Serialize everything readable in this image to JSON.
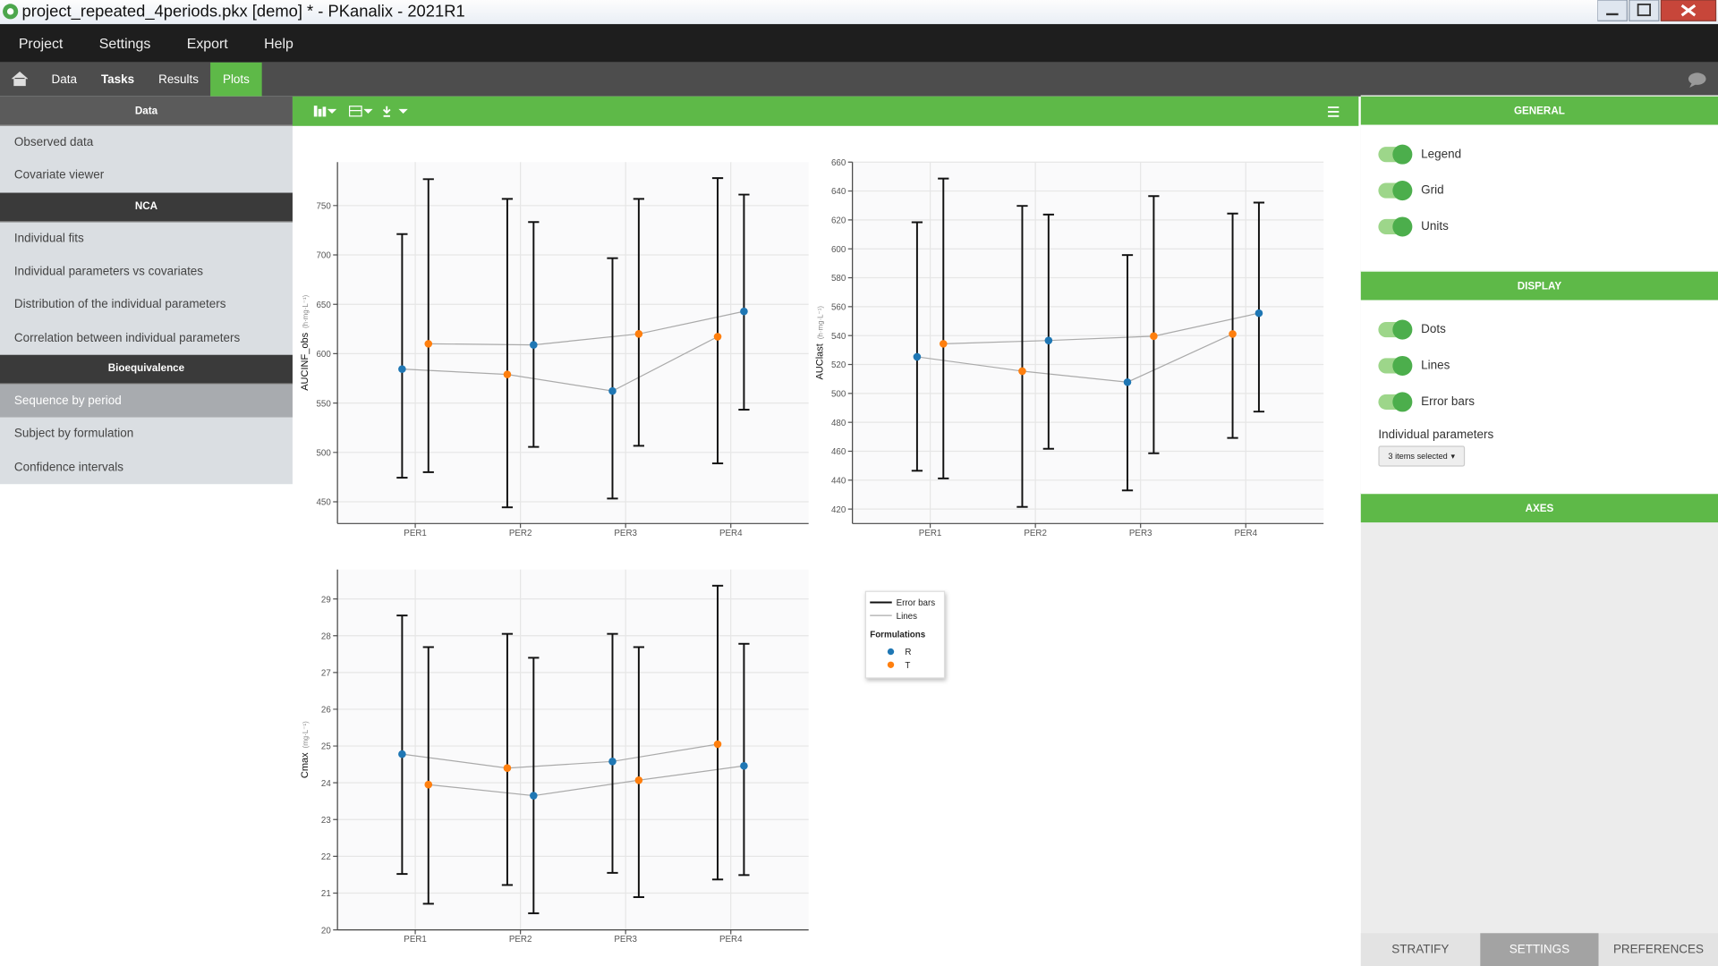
{
  "window": {
    "title": "project_repeated_4periods.pkx [demo] * - PKanalix - 2021R1"
  },
  "menu": [
    "Project",
    "Settings",
    "Export",
    "Help"
  ],
  "tabs": [
    "Data",
    "Tasks",
    "Results",
    "Plots"
  ],
  "active_tab_index": 3,
  "sidebar": {
    "selected_item": "Sequence by period",
    "sections": [
      {
        "title": "Data",
        "items": [
          "Observed data",
          "Covariate viewer"
        ]
      },
      {
        "title": "NCA",
        "items": [
          "Individual fits",
          "Individual parameters vs covariates",
          "Distribution of the individual parameters",
          "Correlation between individual parameters"
        ]
      },
      {
        "title": "Bioequivalence",
        "items": [
          "Sequence by period",
          "Subject by formulation",
          "Confidence intervals"
        ]
      }
    ]
  },
  "charts": [
    {
      "type": "errorbar",
      "y_label": "AUCINF_obs",
      "y_unit": "(h·mg·L⁻¹)",
      "categories": [
        "PER1",
        "PER2",
        "PER3",
        "PER4"
      ],
      "ylim": [
        428,
        794
      ],
      "yticks": [
        450,
        500,
        550,
        600,
        650,
        700,
        750
      ],
      "grid": true,
      "sequences": [
        {
          "formulations": [
            "R",
            "T",
            "R",
            "T"
          ],
          "values": [
            584.4,
            579.0,
            562.2,
            617.2
          ],
          "lower": [
            474.4,
            444.4,
            453.3,
            488.9
          ],
          "upper": [
            721.1,
            756.7,
            696.7,
            777.8
          ]
        },
        {
          "formulations": [
            "T",
            "R",
            "T",
            "R"
          ],
          "values": [
            610.0,
            608.9,
            620.0,
            642.8
          ],
          "lower": [
            480.0,
            505.6,
            506.7,
            543.3
          ],
          "upper": [
            776.7,
            733.3,
            756.7,
            761.1
          ]
        }
      ]
    },
    {
      "type": "errorbar",
      "y_label": "AUClast",
      "y_unit": "(h·mg·L⁻¹)",
      "categories": [
        "PER1",
        "PER2",
        "PER3",
        "PER4"
      ],
      "ylim": [
        410,
        660
      ],
      "yticks": [
        420,
        440,
        460,
        480,
        500,
        520,
        540,
        560,
        580,
        600,
        620,
        640,
        660
      ],
      "grid": true,
      "sequences": [
        {
          "formulations": [
            "R",
            "T",
            "R",
            "T"
          ],
          "values": [
            525.3,
            515.4,
            507.8,
            541.1
          ],
          "lower": [
            446.5,
            421.5,
            432.9,
            469.2
          ],
          "upper": [
            618.4,
            629.7,
            595.7,
            624.4
          ]
        },
        {
          "formulations": [
            "T",
            "R",
            "T",
            "R"
          ],
          "values": [
            534.3,
            536.6,
            539.6,
            555.5
          ],
          "lower": [
            441.2,
            461.7,
            458.6,
            487.4
          ],
          "upper": [
            648.6,
            623.7,
            636.5,
            632.0
          ]
        }
      ]
    },
    {
      "type": "errorbar",
      "y_label": "Cmax",
      "y_unit": "(mg·L⁻¹)",
      "categories": [
        "PER1",
        "PER2",
        "PER3",
        "PER4"
      ],
      "ylim": [
        20,
        29.8
      ],
      "yticks": [
        20,
        21,
        22,
        23,
        24,
        25,
        26,
        27,
        28,
        29
      ],
      "grid": true,
      "sequences": [
        {
          "formulations": [
            "R",
            "T",
            "R",
            "T"
          ],
          "values": [
            24.78,
            24.4,
            24.58,
            25.05
          ],
          "lower": [
            21.52,
            21.22,
            21.55,
            21.37
          ],
          "upper": [
            28.55,
            28.05,
            28.05,
            29.36
          ]
        },
        {
          "formulations": [
            "T",
            "R",
            "T",
            "R"
          ],
          "values": [
            23.95,
            23.65,
            24.07,
            24.46
          ],
          "lower": [
            20.71,
            20.45,
            20.89,
            21.49
          ],
          "upper": [
            27.69,
            27.4,
            27.69,
            27.78
          ]
        }
      ]
    }
  ],
  "legend": {
    "error_bars": "Error bars",
    "lines": "Lines",
    "title": "Formulations",
    "formulations": [
      {
        "name": "R",
        "color": "#1f77b4"
      },
      {
        "name": "T",
        "color": "#ff7f0e"
      }
    ]
  },
  "settings": {
    "sections": [
      {
        "title": "GENERAL",
        "toggles": [
          {
            "label": "Legend",
            "on": true
          },
          {
            "label": "Grid",
            "on": true
          },
          {
            "label": "Units",
            "on": true
          }
        ]
      },
      {
        "title": "DISPLAY",
        "toggles": [
          {
            "label": "Dots",
            "on": true
          },
          {
            "label": "Lines",
            "on": true
          },
          {
            "label": "Error bars",
            "on": true
          }
        ],
        "field": {
          "label": "Individual parameters",
          "value": "3 items selected"
        }
      },
      {
        "title": "AXES"
      }
    ]
  },
  "bottom_tabs": [
    "STRATIFY",
    "SETTINGS",
    "PREFERENCES"
  ],
  "active_bottom_tab_index": 1
}
